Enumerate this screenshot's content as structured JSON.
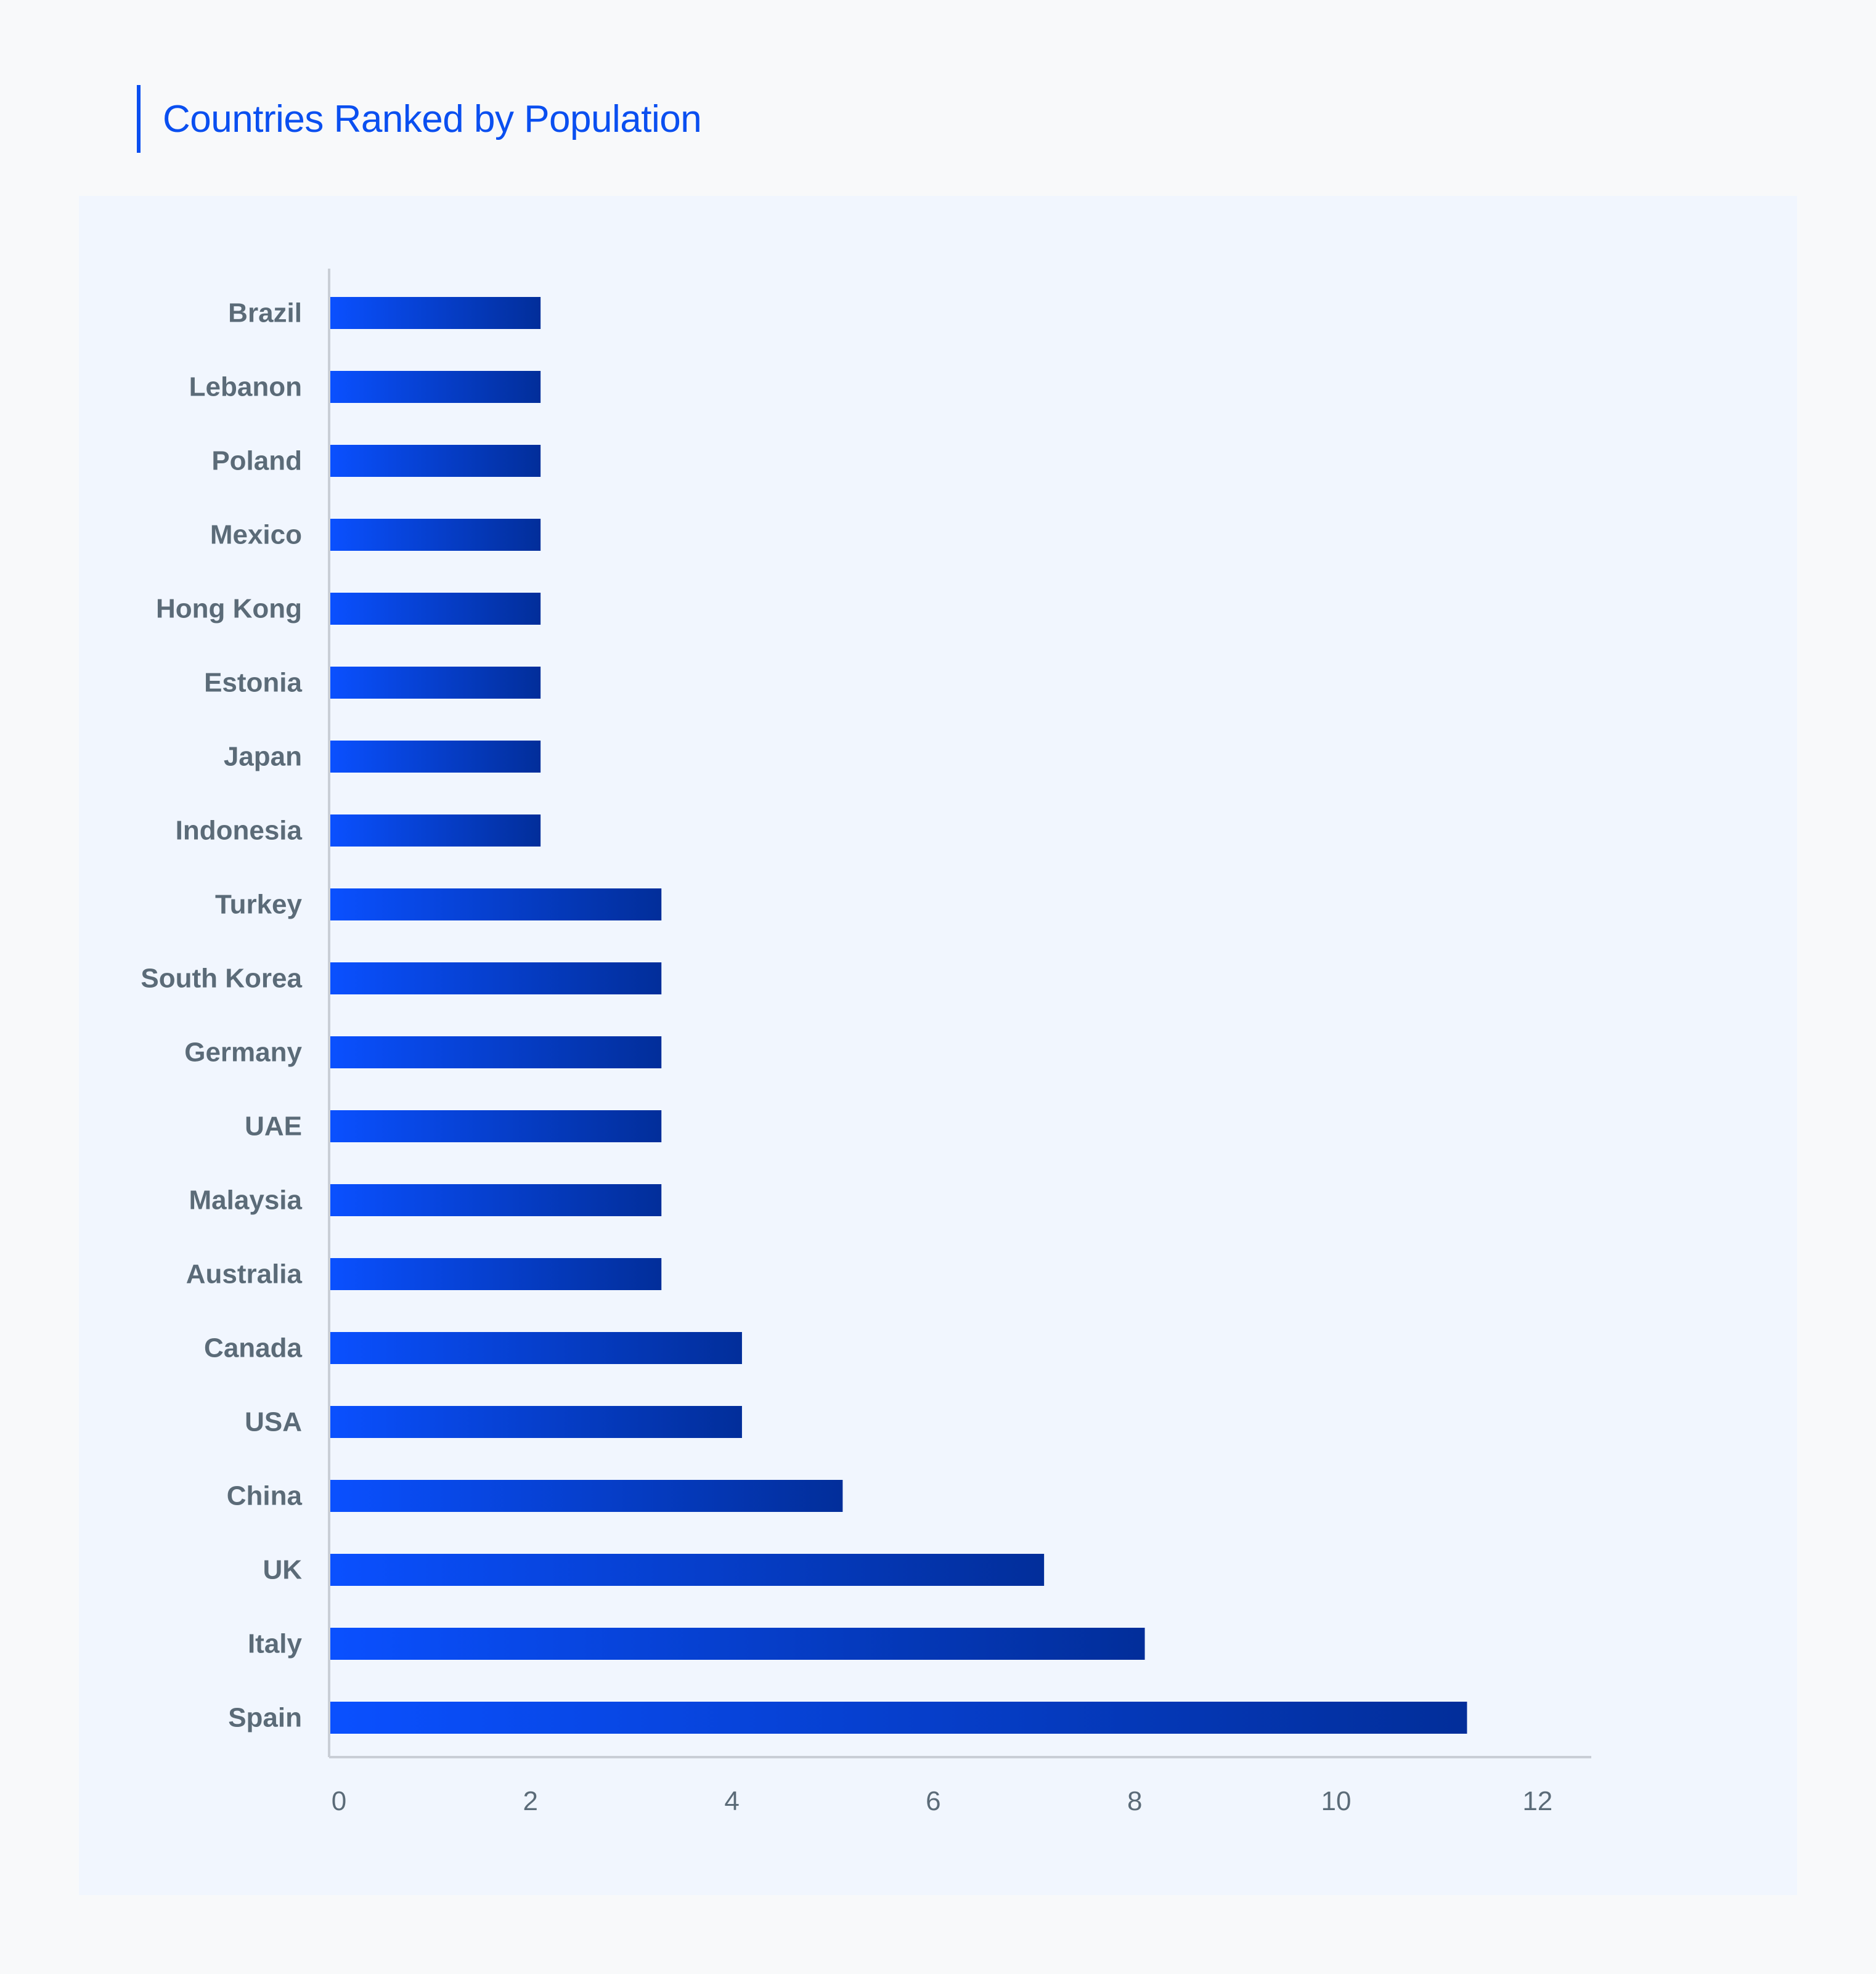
{
  "title": "Countries Ranked by Population",
  "colors": {
    "title": "#0a4ff0",
    "bar_start": "#0a50ff",
    "bar_end": "#022e9a",
    "axis": "#c9ced6",
    "tick_text": "#5b6b78",
    "label_text": "#5b6b78",
    "panel": "#f1f6fe"
  },
  "chart_data": {
    "type": "bar",
    "orientation": "horizontal",
    "categories": [
      "Brazil",
      "Lebanon",
      "Poland",
      "Mexico",
      "Hong Kong",
      "Estonia",
      "Japan",
      "Indonesia",
      "Turkey",
      "South Korea",
      "Germany",
      "UAE",
      "Malaysia",
      "Australia",
      "Canada",
      "USA",
      "China",
      "UK",
      "Italy",
      "Spain"
    ],
    "values": [
      2.1,
      2.1,
      2.1,
      2.1,
      2.1,
      2.1,
      2.1,
      2.1,
      3.3,
      3.3,
      3.3,
      3.3,
      3.3,
      3.3,
      4.1,
      4.1,
      5.1,
      7.1,
      8.1,
      11.3
    ],
    "xlim": [
      0,
      12.5
    ],
    "xticks": [
      "0",
      "2",
      "4",
      "6",
      "8",
      "10",
      "12"
    ],
    "xtick_values": [
      0,
      2,
      4,
      6,
      8,
      10,
      12
    ],
    "grid": false,
    "legend": "none",
    "xlabel": "",
    "ylabel": ""
  }
}
